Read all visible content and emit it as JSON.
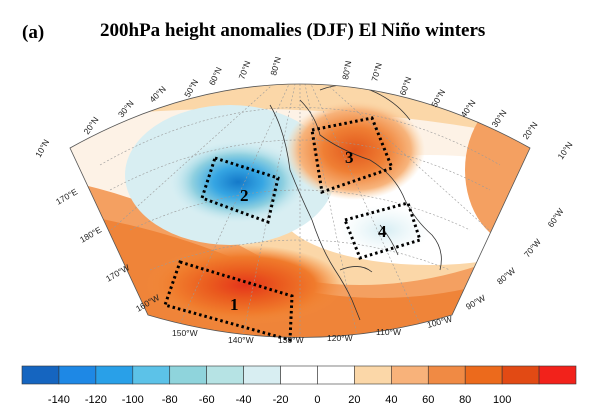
{
  "panel_label": "(a)",
  "title": "200hPa height anomalies (DJF) El Niño winters",
  "map": {
    "latitude_labels_left": [
      "10°N",
      "20°N",
      "30°N",
      "40°N",
      "50°N",
      "60°N",
      "70°N",
      "80°N"
    ],
    "latitude_labels_right": [
      "80°N",
      "70°N",
      "60°N",
      "50°N",
      "40°N",
      "30°N",
      "20°N",
      "10°N"
    ],
    "longitude_labels_left": [
      "170°E",
      "180°E",
      "170°W",
      "160°W"
    ],
    "longitude_labels_bottom": [
      "150°W",
      "140°W",
      "130°W",
      "120°W",
      "110°W",
      "100°W",
      "90°W",
      "80°W",
      "70°W",
      "60°W"
    ],
    "regions": [
      {
        "label": "1",
        "anomaly": "strong positive"
      },
      {
        "label": "2",
        "anomaly": "strong negative"
      },
      {
        "label": "3",
        "anomaly": "positive"
      },
      {
        "label": "4",
        "anomaly": "weak negative"
      }
    ]
  },
  "colorbar": {
    "ticks": [
      "-140",
      "-120",
      "-100",
      "-80",
      "-60",
      "-40",
      "-20",
      "0",
      "20",
      "40",
      "60",
      "80",
      "100"
    ],
    "colors": [
      "#1565c0",
      "#1e88e5",
      "#29a0e8",
      "#5cc2e8",
      "#8fd4dc",
      "#b6e3e4",
      "#d8eef2",
      "#ffffff",
      "#ffffff",
      "#fbd7a8",
      "#f8b27a",
      "#f08a44",
      "#ec6a1c",
      "#e24a14",
      "#f2221b"
    ]
  }
}
